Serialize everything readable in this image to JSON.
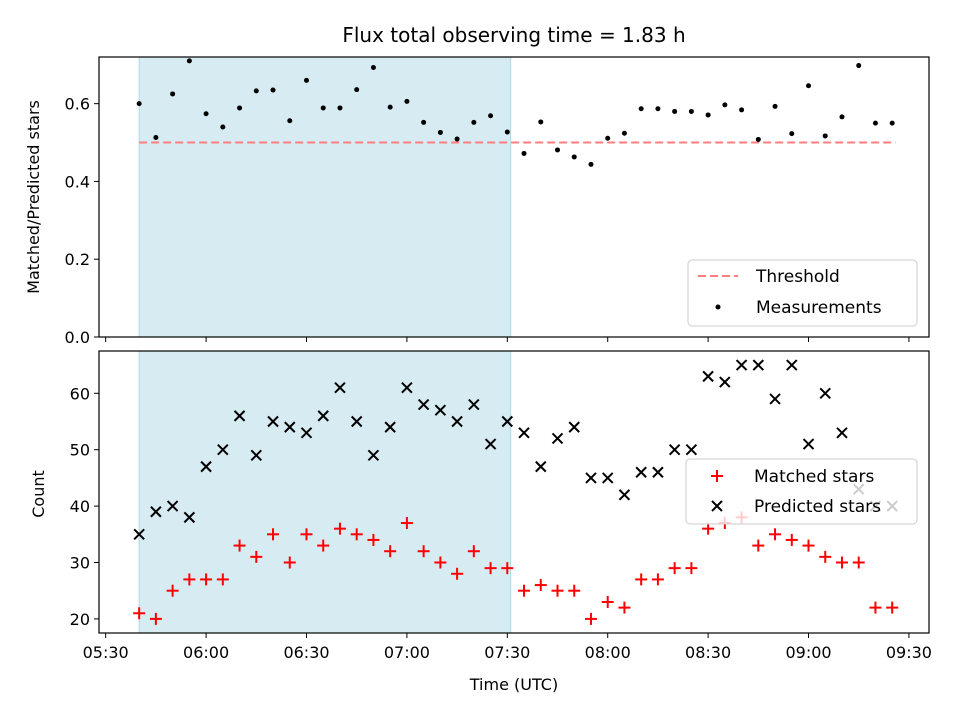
{
  "chart_data": [
    {
      "type": "scatter",
      "title": "Flux total observing time = 1.83 h",
      "xlabel": "",
      "ylabel": "Matched/Predicted stars",
      "xlim": [
        5.4667,
        9.6
      ],
      "ylim": [
        0.0,
        0.72
      ],
      "yticks": [
        0.0,
        0.2,
        0.4,
        0.6
      ],
      "yticklabels": [
        "0.0",
        "0.2",
        "0.4",
        "0.6"
      ],
      "grid": false,
      "legend": {
        "placement": "lower-right",
        "entries": [
          "Threshold",
          "Measurements"
        ]
      },
      "shaded_span": {
        "x": [
          5.6667,
          7.5167
        ],
        "color": "#add8e6"
      },
      "threshold": {
        "name": "Threshold",
        "y": 0.5,
        "x": [
          5.6667,
          9.4333
        ],
        "color": "#ff7f7f",
        "style": "dashed"
      },
      "series": [
        {
          "name": "Measurements",
          "marker": "dot",
          "color": "#000000",
          "x": [
            5.6667,
            5.75,
            5.8333,
            5.9167,
            6.0,
            6.0833,
            6.1667,
            6.25,
            6.3333,
            6.4167,
            6.5,
            6.5833,
            6.6667,
            6.75,
            6.8333,
            6.9167,
            7.0,
            7.0833,
            7.1667,
            7.25,
            7.3333,
            7.4167,
            7.5,
            7.5833,
            7.6667,
            7.75,
            7.8333,
            7.9167,
            8.0,
            8.0833,
            8.1667,
            8.25,
            8.3333,
            8.4167,
            8.5,
            8.5833,
            8.6667,
            8.75,
            8.8333,
            8.9167,
            9.0,
            9.0833,
            9.1667,
            9.25,
            9.3333,
            9.4167
          ],
          "y": [
            0.6,
            0.513,
            0.625,
            0.71,
            0.574,
            0.54,
            0.589,
            0.633,
            0.635,
            0.556,
            0.66,
            0.589,
            0.589,
            0.636,
            0.693,
            0.591,
            0.606,
            0.552,
            0.526,
            0.509,
            0.552,
            0.569,
            0.527,
            0.472,
            0.553,
            0.481,
            0.463,
            0.444,
            0.511,
            0.524,
            0.587,
            0.587,
            0.58,
            0.58,
            0.571,
            0.597,
            0.584,
            0.508,
            0.593,
            0.523,
            0.646,
            0.517,
            0.566,
            0.698,
            0.55,
            0.55
          ]
        }
      ]
    },
    {
      "type": "scatter",
      "title": "",
      "xlabel": "Time (UTC)",
      "ylabel": "Count",
      "xlim": [
        5.4667,
        9.6
      ],
      "ylim": [
        17.5,
        67.5
      ],
      "yticks": [
        20,
        30,
        40,
        50,
        60
      ],
      "yticklabels": [
        "20",
        "30",
        "40",
        "50",
        "60"
      ],
      "xticks": [
        5.5,
        6.0,
        6.5,
        7.0,
        7.5,
        8.0,
        8.5,
        9.0,
        9.5
      ],
      "xticklabels": [
        "05:30",
        "06:00",
        "06:30",
        "07:00",
        "07:30",
        "08:00",
        "08:30",
        "09:00",
        "09:30"
      ],
      "grid": false,
      "legend": {
        "placement": "right",
        "entries": [
          "Matched stars",
          "Predicted stars"
        ]
      },
      "shaded_span": {
        "x": [
          5.6667,
          7.5167
        ],
        "color": "#add8e6"
      },
      "series": [
        {
          "name": "Matched stars",
          "marker": "plus",
          "color": "#ff0000",
          "x": [
            5.6667,
            5.75,
            5.8333,
            5.9167,
            6.0,
            6.0833,
            6.1667,
            6.25,
            6.3333,
            6.4167,
            6.5,
            6.5833,
            6.6667,
            6.75,
            6.8333,
            6.9167,
            7.0,
            7.0833,
            7.1667,
            7.25,
            7.3333,
            7.4167,
            7.5,
            7.5833,
            7.6667,
            7.75,
            7.8333,
            7.9167,
            8.0,
            8.0833,
            8.1667,
            8.25,
            8.3333,
            8.4167,
            8.5,
            8.5833,
            8.6667,
            8.75,
            8.8333,
            8.9167,
            9.0,
            9.0833,
            9.1667,
            9.25,
            9.3333,
            9.4167
          ],
          "y": [
            21,
            20,
            25,
            27,
            27,
            27,
            33,
            31,
            35,
            30,
            35,
            33,
            36,
            35,
            34,
            32,
            37,
            32,
            30,
            28,
            32,
            29,
            29,
            25,
            26,
            25,
            25,
            20,
            23,
            22,
            27,
            27,
            29,
            29,
            36,
            37,
            38,
            33,
            35,
            34,
            33,
            31,
            30,
            30,
            22,
            22
          ]
        },
        {
          "name": "Predicted stars",
          "marker": "x",
          "color": "#000000",
          "x": [
            5.6667,
            5.75,
            5.8333,
            5.9167,
            6.0,
            6.0833,
            6.1667,
            6.25,
            6.3333,
            6.4167,
            6.5,
            6.5833,
            6.6667,
            6.75,
            6.8333,
            6.9167,
            7.0,
            7.0833,
            7.1667,
            7.25,
            7.3333,
            7.4167,
            7.5,
            7.5833,
            7.6667,
            7.75,
            7.8333,
            7.9167,
            8.0,
            8.0833,
            8.1667,
            8.25,
            8.3333,
            8.4167,
            8.5,
            8.5833,
            8.6667,
            8.75,
            8.8333,
            8.9167,
            9.0,
            9.0833,
            9.1667,
            9.25,
            9.3333,
            9.4167
          ],
          "y": [
            35,
            39,
            40,
            38,
            47,
            50,
            56,
            49,
            55,
            54,
            53,
            56,
            61,
            55,
            49,
            54,
            61,
            58,
            57,
            55,
            58,
            51,
            55,
            53,
            47,
            52,
            54,
            45,
            45,
            42,
            46,
            46,
            50,
            50,
            63,
            62,
            65,
            65,
            59,
            65,
            51,
            60,
            53,
            43,
            40,
            40
          ]
        }
      ]
    }
  ]
}
